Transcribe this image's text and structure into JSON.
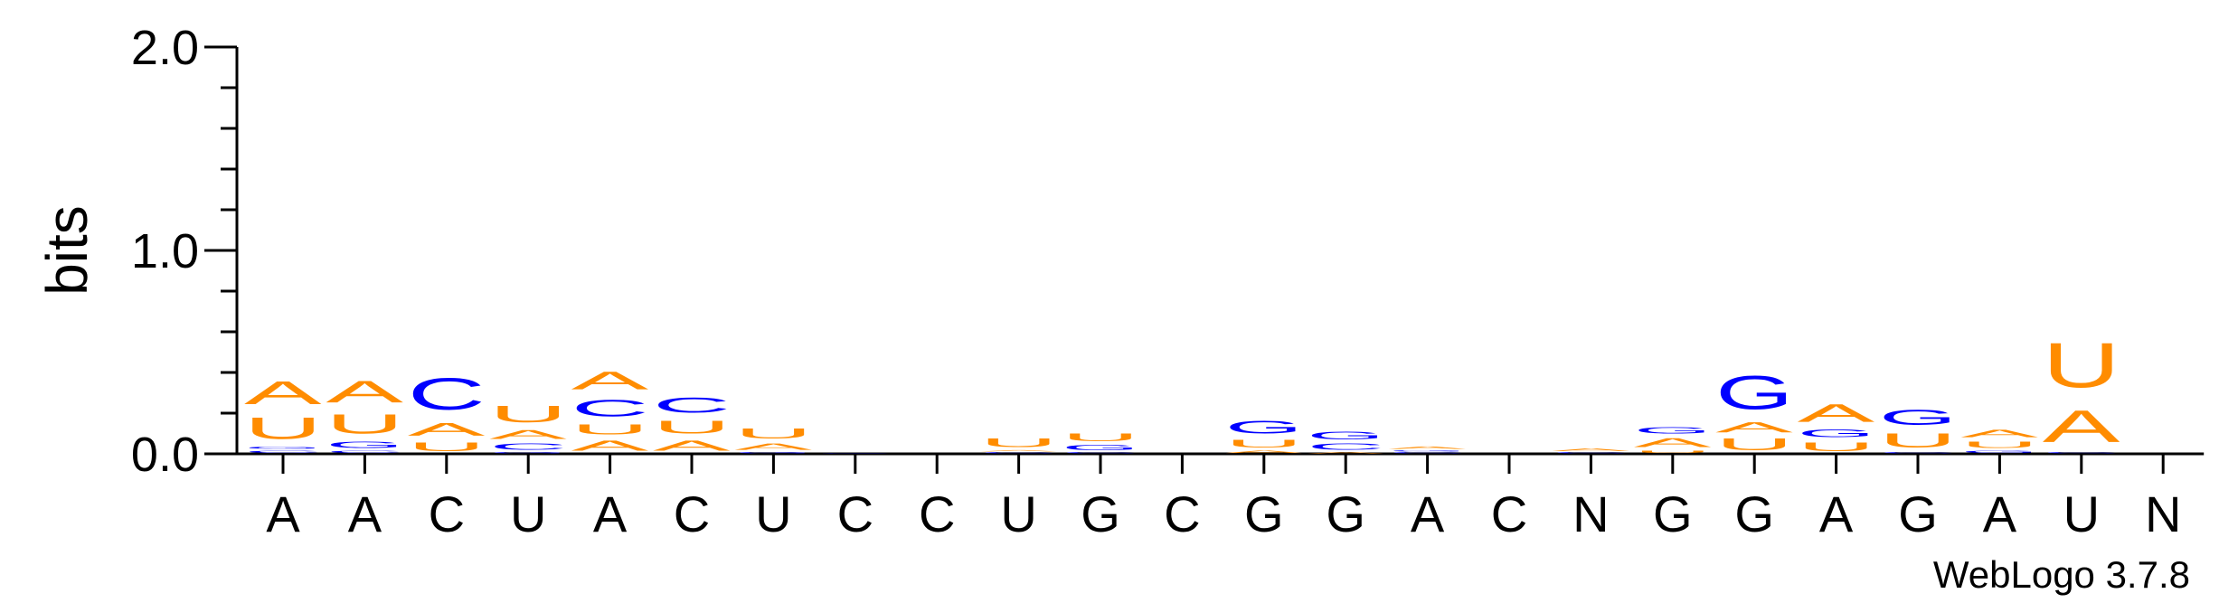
{
  "chart_data": {
    "type": "sequence-logo",
    "ylabel": "bits",
    "ylim": [
      0,
      2.0
    ],
    "yticks": [
      "0.0",
      "1.0",
      "2.0"
    ],
    "credit": "WebLogo 3.7.8",
    "colors": {
      "A": "#ff8c00",
      "U": "#ff8c00",
      "C": "#0000ff",
      "G": "#0000ff"
    },
    "x_labels": [
      "A",
      "A",
      "C",
      "U",
      "A",
      "C",
      "U",
      "C",
      "C",
      "U",
      "G",
      "C",
      "G",
      "G",
      "A",
      "C",
      "N",
      "G",
      "G",
      "A",
      "G",
      "A",
      "U",
      "N"
    ],
    "positions": [
      {
        "stack": [
          {
            "letter": "C",
            "bits": 0.02
          },
          {
            "letter": "G",
            "bits": 0.02
          },
          {
            "letter": "U",
            "bits": 0.17
          },
          {
            "letter": "A",
            "bits": 0.18
          }
        ]
      },
      {
        "stack": [
          {
            "letter": "C",
            "bits": 0.02
          },
          {
            "letter": "G",
            "bits": 0.05
          },
          {
            "letter": "U",
            "bits": 0.15
          },
          {
            "letter": "A",
            "bits": 0.17
          }
        ]
      },
      {
        "stack": [
          {
            "letter": "U",
            "bits": 0.07
          },
          {
            "letter": "A",
            "bits": 0.1
          },
          {
            "letter": "C",
            "bits": 0.25
          }
        ]
      },
      {
        "stack": [
          {
            "letter": "G",
            "bits": 0.01
          },
          {
            "letter": "C",
            "bits": 0.05
          },
          {
            "letter": "A",
            "bits": 0.07
          },
          {
            "letter": "U",
            "bits": 0.13
          }
        ]
      },
      {
        "stack": [
          {
            "letter": "A",
            "bits": 0.08
          },
          {
            "letter": "U",
            "bits": 0.08
          },
          {
            "letter": "C",
            "bits": 0.13
          },
          {
            "letter": "A",
            "bits": 0.14
          }
        ]
      },
      {
        "stack": [
          {
            "letter": "A",
            "bits": 0.08
          },
          {
            "letter": "U",
            "bits": 0.1
          },
          {
            "letter": "C",
            "bits": 0.12
          }
        ]
      },
      {
        "stack": [
          {
            "letter": "G",
            "bits": 0.01
          },
          {
            "letter": "A",
            "bits": 0.05
          },
          {
            "letter": "U",
            "bits": 0.08
          }
        ]
      },
      {
        "stack": [
          {
            "letter": "C",
            "bits": 0.005
          }
        ]
      },
      {
        "stack": []
      },
      {
        "stack": [
          {
            "letter": "C",
            "bits": 0.01
          },
          {
            "letter": "A",
            "bits": 0.01
          },
          {
            "letter": "U",
            "bits": 0.07
          }
        ]
      },
      {
        "stack": [
          {
            "letter": "C",
            "bits": 0.01
          },
          {
            "letter": "G",
            "bits": 0.04
          },
          {
            "letter": "U",
            "bits": 0.06
          }
        ]
      },
      {
        "stack": []
      },
      {
        "stack": [
          {
            "letter": "A",
            "bits": 0.02
          },
          {
            "letter": "U",
            "bits": 0.06
          },
          {
            "letter": "G",
            "bits": 0.1
          }
        ]
      },
      {
        "stack": [
          {
            "letter": "A",
            "bits": 0.01
          },
          {
            "letter": "C",
            "bits": 0.05
          },
          {
            "letter": "G",
            "bits": 0.06
          }
        ]
      },
      {
        "stack": [
          {
            "letter": "C",
            "bits": 0.01
          },
          {
            "letter": "G",
            "bits": 0.01
          },
          {
            "letter": "A",
            "bits": 0.02
          }
        ]
      },
      {
        "stack": []
      },
      {
        "stack": [
          {
            "letter": "C",
            "bits": 0.01
          },
          {
            "letter": "A",
            "bits": 0.02
          }
        ]
      },
      {
        "stack": [
          {
            "letter": "U",
            "bits": 0.02
          },
          {
            "letter": "A",
            "bits": 0.07
          },
          {
            "letter": "G",
            "bits": 0.05
          }
        ]
      },
      {
        "stack": [
          {
            "letter": "U",
            "bits": 0.09
          },
          {
            "letter": "A",
            "bits": 0.08
          },
          {
            "letter": "G",
            "bits": 0.26
          }
        ]
      },
      {
        "stack": [
          {
            "letter": "U",
            "bits": 0.07
          },
          {
            "letter": "G",
            "bits": 0.06
          },
          {
            "letter": "A",
            "bits": 0.14
          }
        ]
      },
      {
        "stack": [
          {
            "letter": "C",
            "bits": 0.01
          },
          {
            "letter": "U",
            "bits": 0.11
          },
          {
            "letter": "G",
            "bits": 0.12
          }
        ]
      },
      {
        "stack": [
          {
            "letter": "G",
            "bits": 0.02
          },
          {
            "letter": "U",
            "bits": 0.05
          },
          {
            "letter": "A",
            "bits": 0.06
          }
        ]
      },
      {
        "stack": [
          {
            "letter": "C",
            "bits": 0.01
          },
          {
            "letter": "A",
            "bits": 0.25
          },
          {
            "letter": "U",
            "bits": 0.35
          }
        ]
      },
      {
        "stack": []
      }
    ]
  }
}
